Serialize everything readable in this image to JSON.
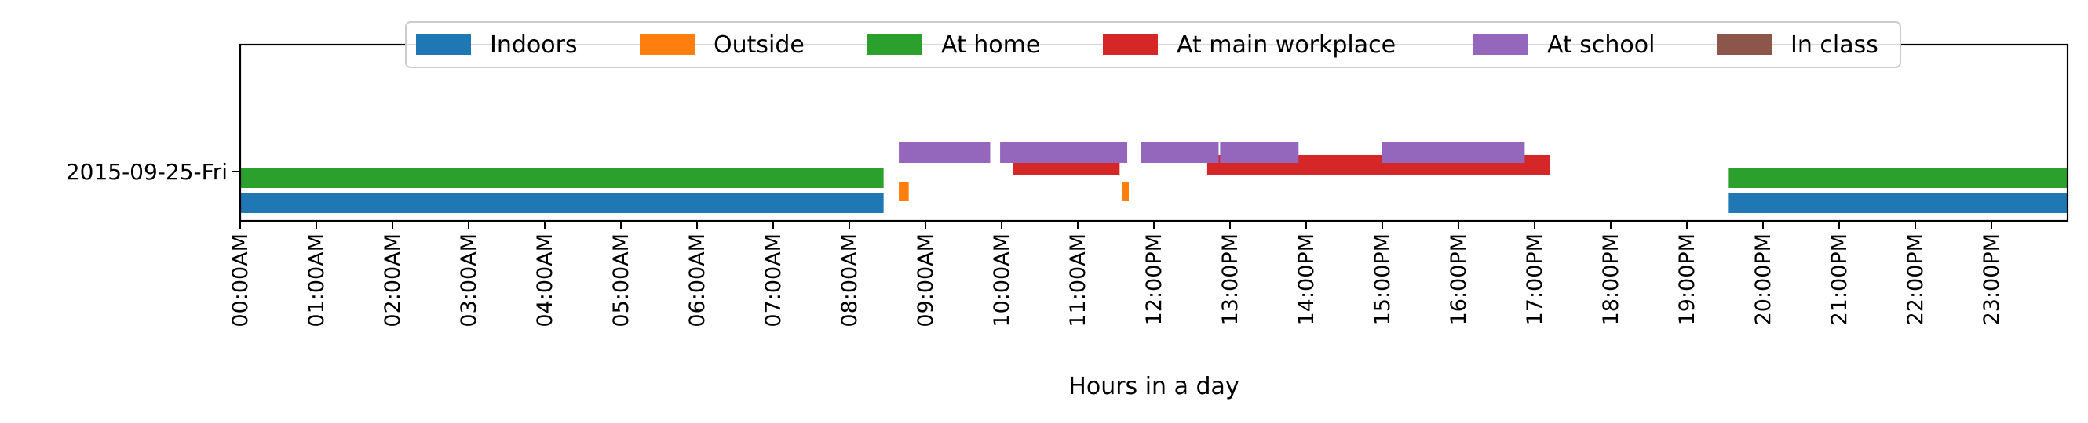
{
  "chart_data": {
    "type": "timeline",
    "xlabel": "Hours in a day",
    "xlim": [
      0,
      24
    ],
    "x_ticks": [
      {
        "value": 0,
        "label": "00:00AM"
      },
      {
        "value": 1,
        "label": "01:00AM"
      },
      {
        "value": 2,
        "label": "02:00AM"
      },
      {
        "value": 3,
        "label": "03:00AM"
      },
      {
        "value": 4,
        "label": "04:00AM"
      },
      {
        "value": 5,
        "label": "05:00AM"
      },
      {
        "value": 6,
        "label": "06:00AM"
      },
      {
        "value": 7,
        "label": "07:00AM"
      },
      {
        "value": 8,
        "label": "08:00AM"
      },
      {
        "value": 9,
        "label": "09:00AM"
      },
      {
        "value": 10,
        "label": "10:00AM"
      },
      {
        "value": 11,
        "label": "11:00AM"
      },
      {
        "value": 12,
        "label": "12:00PM"
      },
      {
        "value": 13,
        "label": "13:00PM"
      },
      {
        "value": 14,
        "label": "14:00PM"
      },
      {
        "value": 15,
        "label": "15:00PM"
      },
      {
        "value": 16,
        "label": "16:00PM"
      },
      {
        "value": 17,
        "label": "17:00PM"
      },
      {
        "value": 18,
        "label": "18:00PM"
      },
      {
        "value": 19,
        "label": "19:00PM"
      },
      {
        "value": 20,
        "label": "20:00PM"
      },
      {
        "value": 21,
        "label": "21:00PM"
      },
      {
        "value": 22,
        "label": "22:00PM"
      },
      {
        "value": 23,
        "label": "23:00PM"
      }
    ],
    "y_label": "2015-09-25-Fri",
    "legend_position": "top-center",
    "series": [
      {
        "name": "Indoors",
        "color": "#1f77b4",
        "intervals": [
          [
            0,
            8.45
          ],
          [
            19.55,
            24
          ]
        ]
      },
      {
        "name": "Outside",
        "color": "#ff7f0e",
        "intervals": [
          [
            8.65,
            8.78
          ],
          [
            11.58,
            11.67
          ]
        ]
      },
      {
        "name": "At home",
        "color": "#2ca02c",
        "intervals": [
          [
            0,
            8.45
          ],
          [
            19.55,
            24
          ]
        ]
      },
      {
        "name": "At main workplace",
        "color": "#d62728",
        "intervals": [
          [
            10.15,
            11.55
          ],
          [
            12.7,
            17.2
          ]
        ]
      },
      {
        "name": "At school",
        "color": "#9467bd",
        "intervals": [
          [
            8.65,
            9.85
          ],
          [
            9.98,
            11.65
          ],
          [
            11.83,
            12.85
          ],
          [
            12.87,
            13.9
          ],
          [
            15.0,
            16.87
          ]
        ]
      },
      {
        "name": "In class",
        "color": "#8c564b",
        "intervals": []
      }
    ]
  }
}
